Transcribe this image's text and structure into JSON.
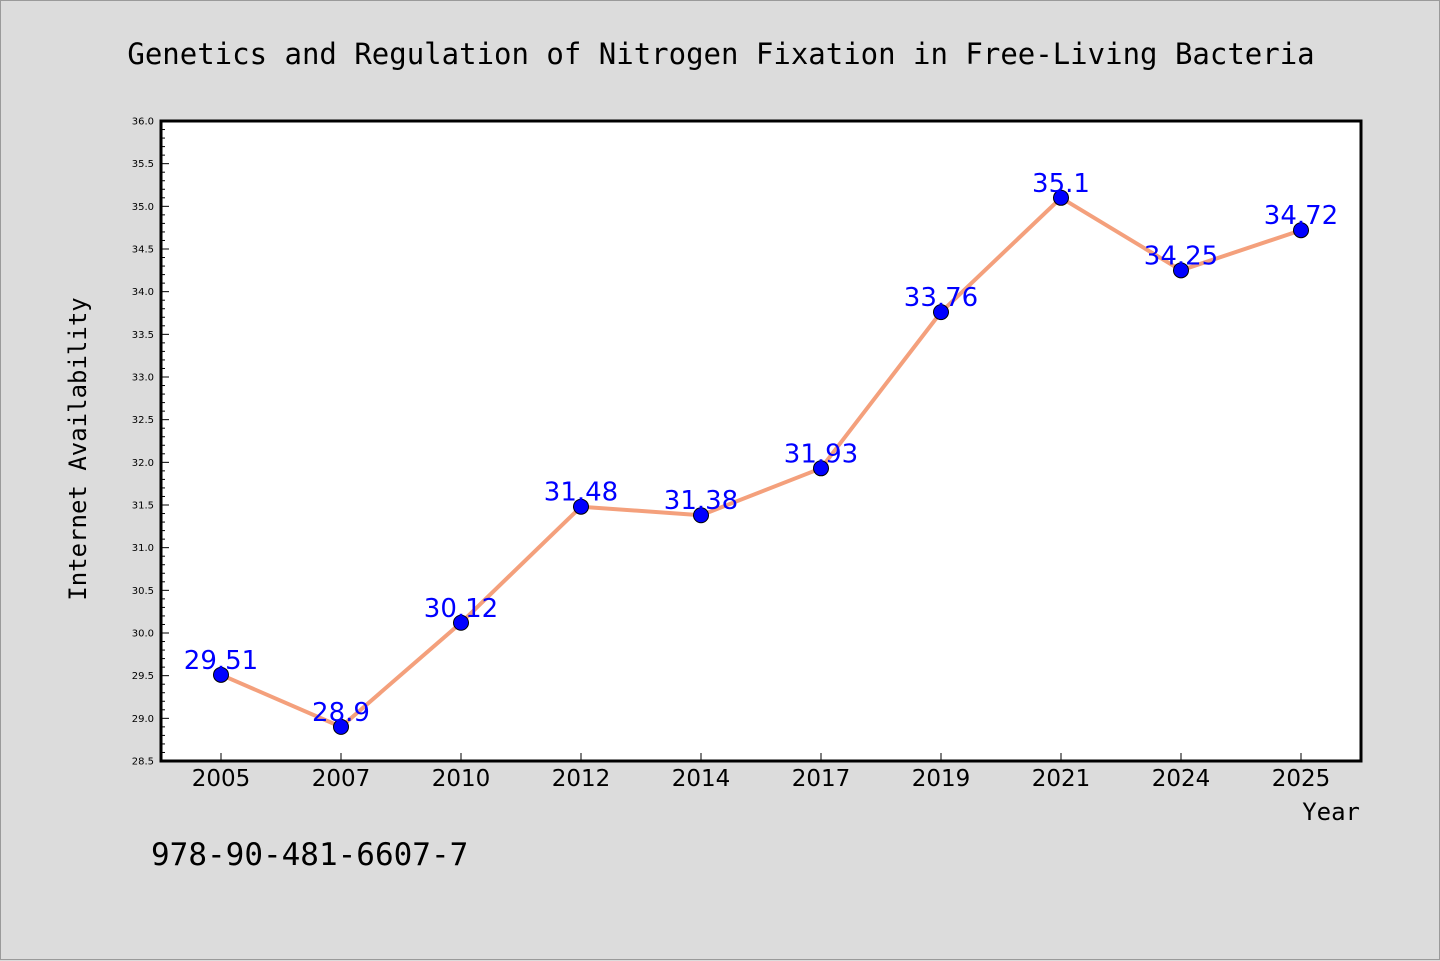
{
  "chart_data": {
    "type": "line",
    "title": "Genetics and Regulation of Nitrogen Fixation in Free-Living Bacteria",
    "xlabel": "Year",
    "ylabel": "Internet Availability",
    "categories": [
      "2005",
      "2007",
      "2010",
      "2012",
      "2014",
      "2017",
      "2019",
      "2021",
      "2024",
      "2025"
    ],
    "values": [
      29.51,
      28.9,
      30.12,
      31.48,
      31.38,
      31.93,
      33.76,
      35.1,
      34.25,
      34.72
    ],
    "data_labels": [
      "29.51",
      "28.9",
      "30.12",
      "31.48",
      "31.38",
      "31.93",
      "33.76",
      "35.1",
      "34.25",
      "34.72"
    ],
    "ylim": [
      28.5,
      36.0
    ],
    "yticks": [
      "28.5",
      "29.0",
      "29.5",
      "30.0",
      "30.5",
      "31.0",
      "31.5",
      "32.0",
      "32.5",
      "33.0",
      "33.5",
      "34.0",
      "34.5",
      "35.0",
      "35.5",
      "36.0"
    ],
    "grid": false,
    "line_color": "#f4a07c",
    "marker_color": "#0000ff",
    "label_color": "#0000ff",
    "plot_background": "#ffffff",
    "figure_background": "#dcdcdc"
  },
  "footer": {
    "isbn": "978-90-481-6607-7"
  }
}
